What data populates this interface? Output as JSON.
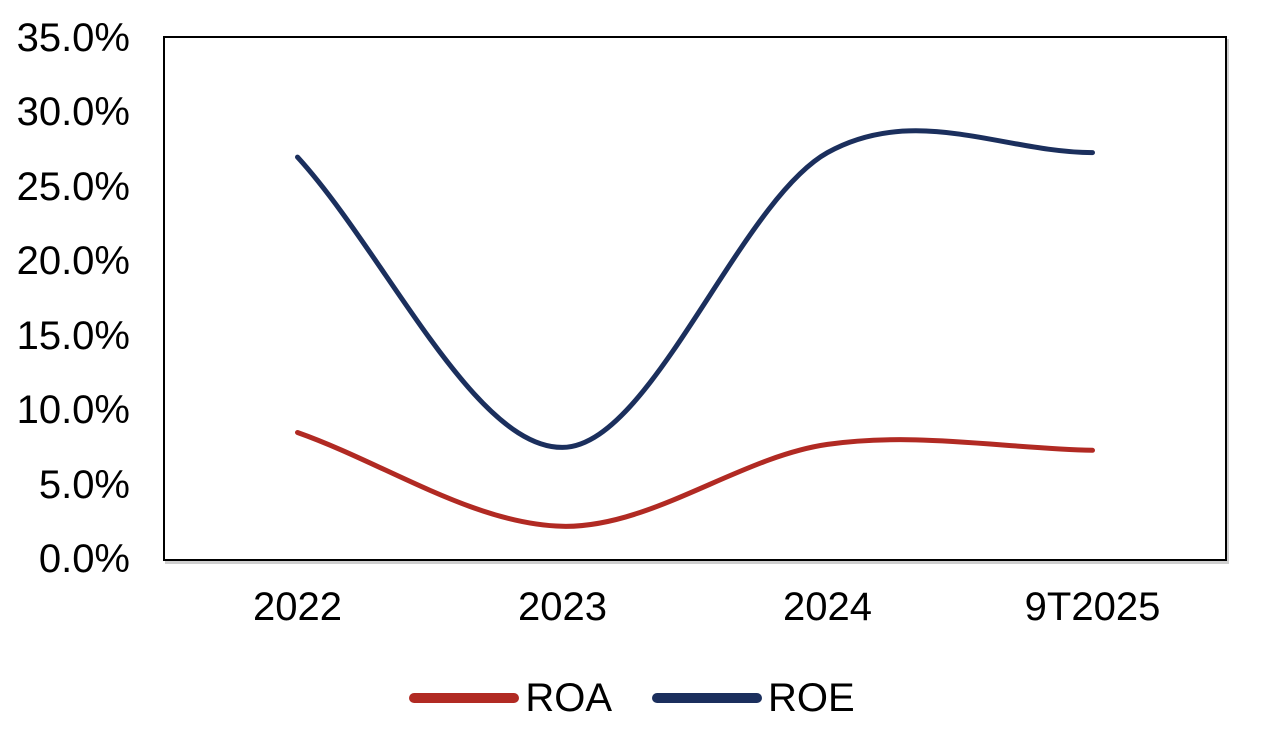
{
  "chart_data": {
    "type": "line",
    "categories": [
      "2022",
      "2023",
      "2024",
      "9T2025"
    ],
    "series": [
      {
        "name": "ROA",
        "color": "#B12A23",
        "values": [
          8.5,
          2.2,
          7.7,
          7.3
        ]
      },
      {
        "name": "ROE",
        "color": "#1B2F5D",
        "values": [
          27.0,
          7.5,
          27.3,
          27.3
        ]
      }
    ],
    "y_ticks": [
      "35.0%",
      "30.0%",
      "25.0%",
      "20.0%",
      "15.0%",
      "10.0%",
      "5.0%",
      "0.0%"
    ],
    "y_tick_values": [
      35,
      30,
      25,
      20,
      15,
      10,
      5,
      0
    ],
    "ylim": [
      0,
      35
    ],
    "grid": false,
    "smooth": true,
    "legend_position": "bottom",
    "axis_text_color": "#000000",
    "plot_border_color": "#000000",
    "line_width": 5
  }
}
